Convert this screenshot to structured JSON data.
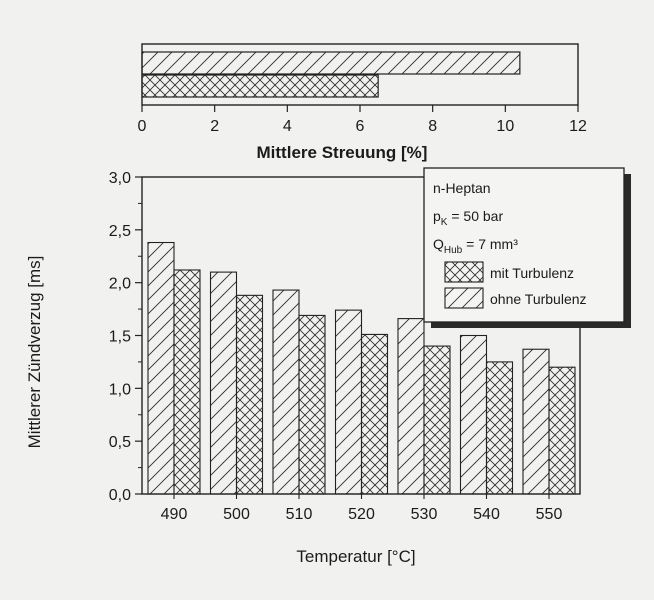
{
  "chart_data": [
    {
      "type": "bar",
      "orientation": "horizontal",
      "xlabel": "Mittlere Streuung  [%]",
      "xlim": [
        0,
        12
      ],
      "xticks": [
        0,
        2,
        4,
        6,
        8,
        10,
        12
      ],
      "bars": [
        {
          "series": "ohne Turbulenz",
          "value": 10.4
        },
        {
          "series": "mit  Turbulenz",
          "value": 6.5
        }
      ]
    },
    {
      "type": "bar",
      "xlabel": "Temperatur  [°C]",
      "ylabel": "Mittlerer Zündverzug  [ms]",
      "ylim": [
        0,
        3.0
      ],
      "yticks": [
        "0,0",
        "0,5",
        "1,0",
        "1,5",
        "2,0",
        "2,5",
        "3,0"
      ],
      "categories": [
        "490",
        "500",
        "510",
        "520",
        "530",
        "540",
        "550"
      ],
      "series": [
        {
          "name": "ohne Turbulenz",
          "values": [
            2.38,
            2.1,
            1.93,
            1.74,
            1.66,
            1.5,
            1.37
          ]
        },
        {
          "name": "mit  Turbulenz",
          "values": [
            2.12,
            1.88,
            1.69,
            1.51,
            1.4,
            1.25,
            1.2
          ]
        }
      ],
      "legend": {
        "position": "top-right",
        "lines": [
          "n-Heptan",
          "p",
          "K",
          " = 50 bar",
          "Q",
          "Hub",
          " = 7 mm³"
        ],
        "entries": [
          "mit  Turbulenz",
          "ohne Turbulenz"
        ]
      }
    }
  ]
}
